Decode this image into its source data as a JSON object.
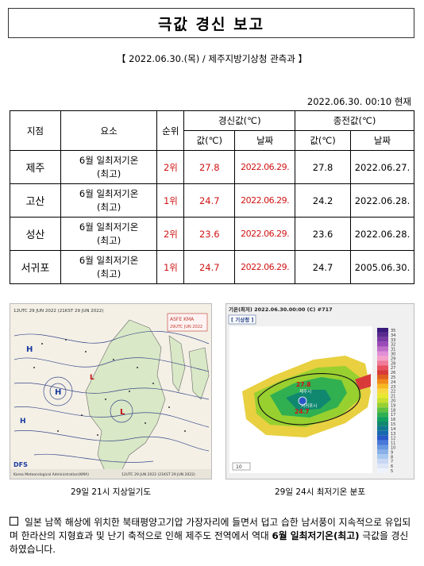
{
  "title": "극값 경신 보고",
  "subhead": "【  2022.06.30.(목) / 제주지방기상청  관측과  】",
  "as_of": "2022.06.30.  00:10  현재",
  "table": {
    "headers": {
      "station": "지점",
      "element": "요소",
      "rank": "순위",
      "new_group": "경신값(℃)",
      "old_group": "종전값(℃)",
      "value": "값(℃)",
      "date": "날짜"
    },
    "rows": [
      {
        "station": "제주",
        "element_line1": "6월 일최저기온",
        "element_line2": "(최고)",
        "rank": "2위",
        "new_value": "27.8",
        "new_date": "2022.06.29.",
        "old_value": "27.8",
        "old_date": "2022.06.27."
      },
      {
        "station": "고산",
        "element_line1": "6월 일최저기온",
        "element_line2": "(최고)",
        "rank": "1위",
        "new_value": "24.7",
        "new_date": "2022.06.29.",
        "old_value": "24.2",
        "old_date": "2022.06.28."
      },
      {
        "station": "성산",
        "element_line1": "6월 일최저기온",
        "element_line2": "(최고)",
        "rank": "2위",
        "new_value": "23.6",
        "new_date": "2022.06.29.",
        "old_value": "23.6",
        "old_date": "2022.06.28."
      },
      {
        "station": "서귀포",
        "element_line1": "6월 일최저기온",
        "element_line2": "(최고)",
        "rank": "1위",
        "new_value": "24.7",
        "new_date": "2022.06.29.",
        "old_value": "24.7",
        "old_date": "2005.06.30."
      }
    ]
  },
  "figure_left": {
    "caption": "29일 21시 지상일기도",
    "header": "12UTC 29 JUN 2022 (21KST 29 JUN 2022)",
    "stamp_line1": "ASFE   KMA",
    "stamp_line2": "29UTC JUN 2022",
    "footer_left": "DFS",
    "footer_text": "Korea Meteorological Administration(KMA)",
    "footer_right": "12UTC 29 JUN 2022 (21KST 29 JUN 2022)"
  },
  "figure_right": {
    "caption": "29일 24시 최저기온 분포",
    "header": "기온(최저) 2022.06.30.00:00 (C) #717",
    "badge": "[ 기상청 ]",
    "label_top": "27.8",
    "label_bottom": "24.7",
    "city_label": "제주시",
    "south_label": "서귀포시",
    "scale_label": "10",
    "legend_values": [
      "35",
      "34",
      "33",
      "32",
      "31",
      "30",
      "29",
      "28",
      "27",
      "26",
      "25",
      "24",
      "23",
      "22",
      "21",
      "20",
      "19",
      "18",
      "17",
      "16",
      "15",
      "14",
      "13",
      "12",
      "11",
      "10",
      "9",
      "8",
      "7",
      "6",
      "5"
    ],
    "legend_colors": [
      "#3a1a7a",
      "#5a2a8f",
      "#7a3aa5",
      "#9a4bb8",
      "#c06fc8",
      "#e08fd8",
      "#f4a0c8",
      "#f07a9a",
      "#e85060",
      "#d83a3a",
      "#e06020",
      "#f08a18",
      "#f8b820",
      "#f8d840",
      "#e8e830",
      "#c8e030",
      "#98d030",
      "#60c040",
      "#30b050",
      "#10a060",
      "#108870",
      "#107890",
      "#1868b0",
      "#2858c8",
      "#4878d8",
      "#6898e0",
      "#88b0e8",
      "#a8c8f0",
      "#c8d8f4",
      "#dde6f6",
      "#eef2fa"
    ]
  },
  "note": {
    "text_pre": "일본 남쪽 해상에 위치한 북태평양고기압 가장자리에 들면서 덥고 습한 남서풍이 지속적으로 유입되며 한라산의 지형효과 및 난기 축적으로 인해 제주도 전역에서 역대 ",
    "text_bold": "6월 일최저기온(최고)",
    "text_post": " 극값을 경신하였습니다."
  }
}
